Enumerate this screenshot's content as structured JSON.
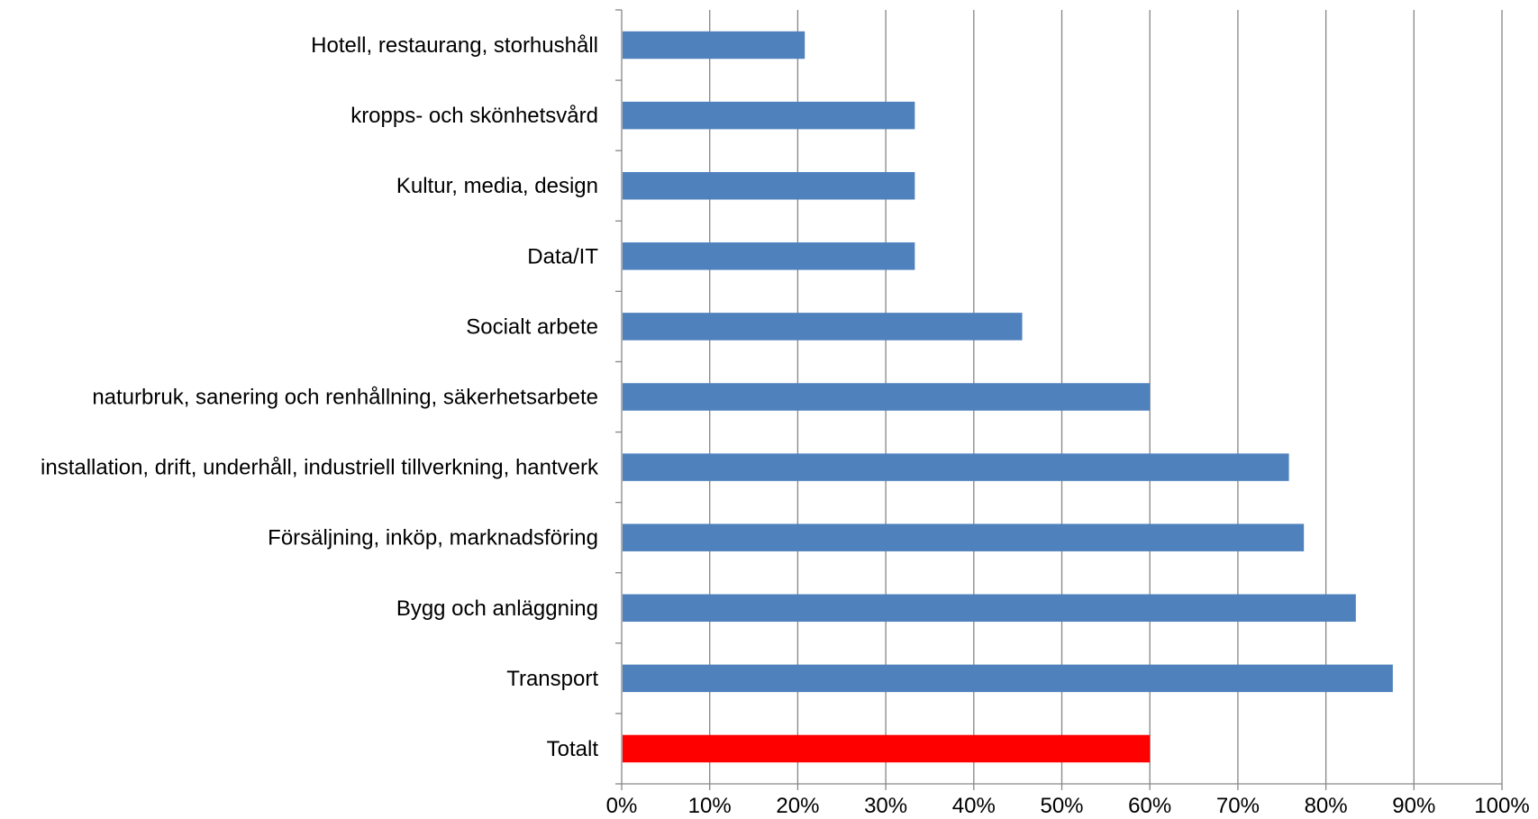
{
  "chart_data": {
    "type": "bar",
    "orientation": "horizontal",
    "title": "",
    "xlabel": "",
    "ylabel": "",
    "xlim": [
      0,
      1
    ],
    "grid": true,
    "legend": "none",
    "categories": [
      "Hotell, restaurang, storhushåll",
      "kropps- och skönhetsvård",
      "Kultur, media, design",
      "Data/IT",
      "Socialt arbete",
      "naturbruk, sanering och renhållning, säkerhetsarbete",
      "installation, drift, underhåll, industriell tillverkning, hantverk",
      "Försäljning, inköp, marknadsföring",
      "Bygg och anläggning",
      "Transport",
      "Totalt"
    ],
    "values": [
      0.208,
      0.333,
      0.333,
      0.333,
      0.455,
      0.6,
      0.758,
      0.775,
      0.834,
      0.876,
      0.6
    ],
    "bar_colors": [
      "#4F81BD",
      "#4F81BD",
      "#4F81BD",
      "#4F81BD",
      "#4F81BD",
      "#4F81BD",
      "#4F81BD",
      "#4F81BD",
      "#4F81BD",
      "#4F81BD",
      "#FF0000"
    ],
    "x_ticks": [
      "0%",
      "10%",
      "20%",
      "30%",
      "40%",
      "50%",
      "60%",
      "70%",
      "80%",
      "90%",
      "100%"
    ]
  }
}
